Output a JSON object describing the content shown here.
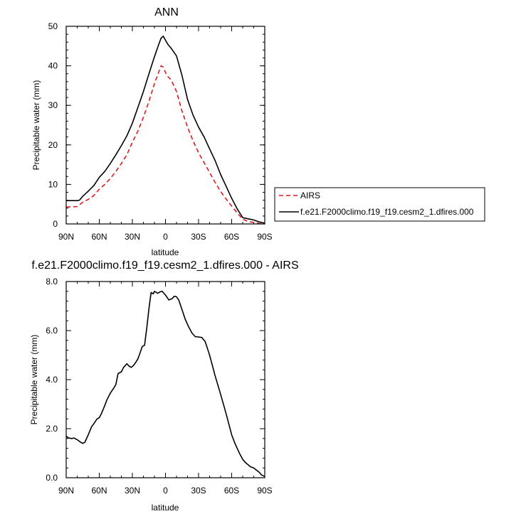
{
  "chart_data": [
    {
      "type": "line",
      "title": "ANN",
      "xlabel": "latitude",
      "ylabel": "Precipitable water (mm)",
      "xlim": [
        90,
        -90
      ],
      "ylim": [
        0,
        50
      ],
      "xticks": [
        90,
        60,
        30,
        0,
        -30,
        -60,
        -90
      ],
      "xtick_labels": [
        "90N",
        "60N",
        "30N",
        "0",
        "30S",
        "60S",
        "90S"
      ],
      "yticks": [
        0,
        10,
        20,
        30,
        40,
        50
      ],
      "ytick_labels": [
        "0",
        "10",
        "20",
        "30",
        "40",
        "50"
      ],
      "legend_position": "right",
      "series": [
        {
          "name": "AIRS",
          "color": "#e0191b",
          "style": "dashed",
          "x": [
            90,
            85,
            80,
            75,
            70,
            65,
            60,
            55,
            50,
            45,
            40,
            35,
            30,
            25,
            20,
            15,
            10,
            6,
            4,
            2,
            0,
            -2,
            -5,
            -10,
            -15,
            -20,
            -25,
            -30,
            -35,
            -40,
            -45,
            -50,
            -55,
            -60,
            -65,
            -70,
            -75,
            -80,
            -85,
            -90
          ],
          "y": [
            4.3,
            4.3,
            4.4,
            5.5,
            6.2,
            7.2,
            8.8,
            10.0,
            11.5,
            13.3,
            15.3,
            17.5,
            20.7,
            23.5,
            27.0,
            31.0,
            35.5,
            38.5,
            40.0,
            39.7,
            38.3,
            37.3,
            36.5,
            33.5,
            28.5,
            24.5,
            21.0,
            18.0,
            15.5,
            13.0,
            10.5,
            8.2,
            6.3,
            4.5,
            2.8,
            1.2,
            0.6,
            0.4,
            0.1,
            0.0
          ]
        },
        {
          "name": "f.e21.F2000climo.f19_f19.cesm2_1.dfires.000",
          "color": "#000000",
          "style": "solid",
          "x": [
            90,
            85,
            80,
            78,
            75,
            70,
            65,
            60,
            55,
            50,
            45,
            40,
            35,
            30,
            25,
            20,
            15,
            10,
            6,
            4,
            2,
            0,
            -2,
            -5,
            -10,
            -15,
            -20,
            -25,
            -30,
            -35,
            -40,
            -45,
            -50,
            -55,
            -60,
            -65,
            -70,
            -75,
            -80,
            -85,
            -90
          ],
          "y": [
            5.9,
            5.9,
            5.9,
            6.0,
            7.0,
            8.3,
            9.7,
            11.8,
            13.3,
            15.3,
            17.5,
            19.8,
            22.3,
            25.5,
            29.5,
            33.5,
            38.0,
            42.3,
            45.5,
            47.0,
            47.5,
            46.5,
            45.5,
            44.5,
            42.5,
            37.5,
            31.5,
            27.5,
            24.5,
            22.0,
            19.0,
            16.0,
            12.5,
            9.5,
            6.5,
            3.8,
            1.6,
            1.3,
            1.0,
            0.5,
            0.2
          ]
        }
      ]
    },
    {
      "type": "line",
      "title": "f.e21.F2000climo.f19_f19.cesm2_1.dfires.000 - AIRS",
      "xlabel": "latitude",
      "ylabel": "Precipitable water (mm)",
      "xlim": [
        90,
        -90
      ],
      "ylim": [
        0,
        8
      ],
      "xticks": [
        90,
        60,
        30,
        0,
        -30,
        -60,
        -90
      ],
      "xtick_labels": [
        "90N",
        "60N",
        "30N",
        "0",
        "30S",
        "60S",
        "90S"
      ],
      "yticks": [
        0,
        2,
        4,
        6,
        8
      ],
      "ytick_labels": [
        "0.0",
        "2.0",
        "4.0",
        "6.0",
        "8.0"
      ],
      "series": [
        {
          "color": "#000000",
          "style": "solid",
          "x": [
            90,
            88,
            85,
            83,
            80,
            77,
            75,
            73,
            70,
            67,
            65,
            62,
            60,
            58,
            55,
            53,
            50,
            47,
            45,
            43,
            40,
            38,
            35,
            33,
            31,
            29,
            27,
            25,
            23,
            21,
            19,
            17,
            15,
            13,
            11,
            10,
            9,
            8,
            7,
            5,
            3,
            0,
            -3,
            -6,
            -8,
            -10,
            -12,
            -15,
            -18,
            -21,
            -24,
            -27,
            -30,
            -33,
            -36,
            -40,
            -45,
            -50,
            -55,
            -60,
            -63,
            -67,
            -70,
            -73,
            -77,
            -80,
            -85,
            -87,
            -90
          ],
          "y": [
            1.7,
            1.62,
            1.6,
            1.62,
            1.55,
            1.45,
            1.4,
            1.45,
            1.75,
            2.08,
            2.2,
            2.4,
            2.45,
            2.62,
            2.95,
            3.18,
            3.45,
            3.65,
            3.8,
            4.25,
            4.32,
            4.5,
            4.65,
            4.55,
            4.5,
            4.58,
            4.7,
            4.85,
            5.1,
            5.35,
            5.4,
            6.1,
            6.9,
            7.55,
            7.5,
            7.6,
            7.57,
            7.55,
            7.52,
            7.58,
            7.6,
            7.45,
            7.25,
            7.3,
            7.4,
            7.38,
            7.25,
            6.85,
            6.45,
            6.15,
            5.9,
            5.75,
            5.74,
            5.72,
            5.55,
            5.0,
            4.15,
            3.4,
            2.6,
            1.75,
            1.4,
            1.0,
            0.75,
            0.6,
            0.45,
            0.4,
            0.22,
            0.12,
            0.05
          ]
        }
      ]
    }
  ]
}
